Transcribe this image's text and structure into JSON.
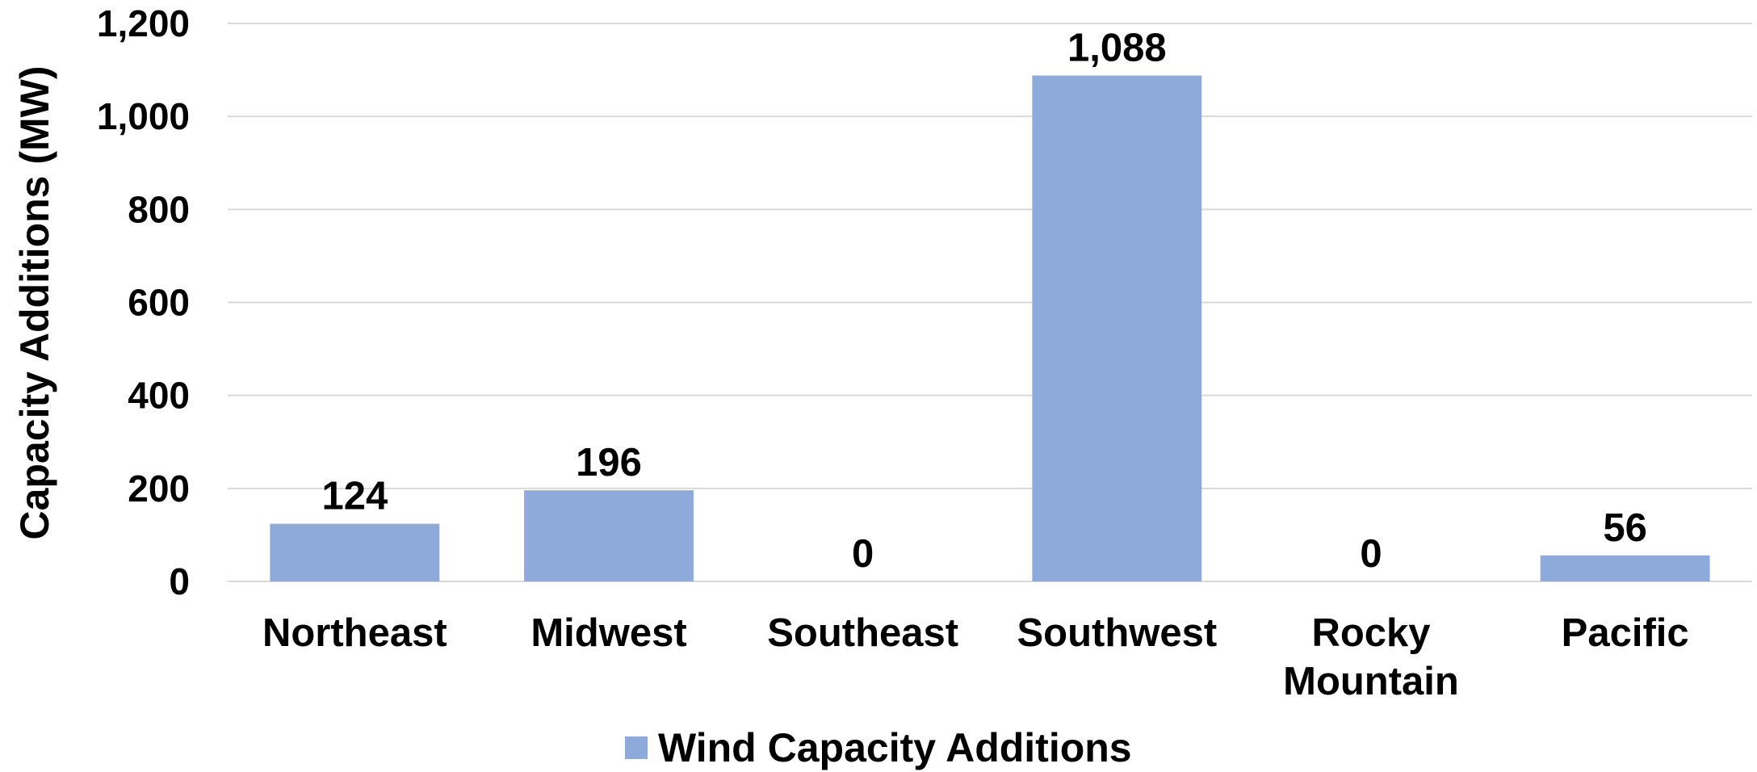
{
  "chart_data": {
    "type": "bar",
    "title": "",
    "xlabel": "",
    "ylabel": "Capacity Additions (MW)",
    "ylim": [
      0,
      1200
    ],
    "yticks": [
      0,
      200,
      400,
      600,
      800,
      1000,
      1200
    ],
    "ytick_labels": [
      "0",
      "200",
      "400",
      "600",
      "800",
      "1,000",
      "1,200"
    ],
    "categories": [
      [
        "Northeast"
      ],
      [
        "Midwest"
      ],
      [
        "Southeast"
      ],
      [
        "Southwest"
      ],
      [
        "Rocky",
        "Mountain"
      ],
      [
        "Pacific"
      ]
    ],
    "series": [
      {
        "name": "Wind Capacity Additions",
        "color": "#8eaadb",
        "values": [
          124,
          196,
          0,
          1088,
          0,
          56
        ],
        "data_labels": [
          "124",
          "196",
          "0",
          "1,088",
          "0",
          "56"
        ]
      }
    ],
    "grid": true,
    "legend_position": "bottom"
  }
}
